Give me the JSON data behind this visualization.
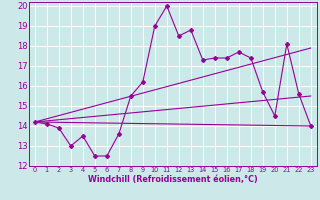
{
  "xlabel": "Windchill (Refroidissement éolien,°C)",
  "xlim": [
    -0.5,
    23.5
  ],
  "ylim": [
    12,
    20.2
  ],
  "yticks": [
    12,
    13,
    14,
    15,
    16,
    17,
    18,
    19,
    20
  ],
  "xticks": [
    0,
    1,
    2,
    3,
    4,
    5,
    6,
    7,
    8,
    9,
    10,
    11,
    12,
    13,
    14,
    15,
    16,
    17,
    18,
    19,
    20,
    21,
    22,
    23
  ],
  "background_color": "#cce8e8",
  "grid_color": "#ffffff",
  "line_color": "#990099",
  "line1_x": [
    0,
    1,
    2,
    3,
    4,
    5,
    6,
    7,
    8,
    9,
    10,
    11,
    12,
    13,
    14,
    15,
    16,
    17,
    18,
    19,
    20,
    21,
    22,
    23
  ],
  "line1_y": [
    14.2,
    14.1,
    13.9,
    13.0,
    13.5,
    12.5,
    12.5,
    13.6,
    15.5,
    16.2,
    19.0,
    20.0,
    18.5,
    18.8,
    17.3,
    17.4,
    17.4,
    17.7,
    17.4,
    15.7,
    14.5,
    18.1,
    15.6,
    14.0
  ],
  "line2_x": [
    0,
    23
  ],
  "line2_y": [
    14.2,
    17.9
  ],
  "line3_x": [
    0,
    23
  ],
  "line3_y": [
    14.2,
    15.5
  ],
  "line4_x": [
    0,
    23
  ],
  "line4_y": [
    14.2,
    14.0
  ],
  "ytick_fontsize": 6,
  "xtick_fontsize": 4.8,
  "xlabel_fontsize": 5.8
}
